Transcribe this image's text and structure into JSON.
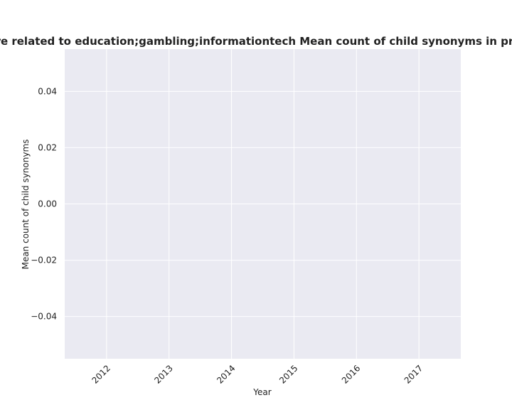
{
  "chart_data": {
    "type": "line",
    "title": "ies are related to education;gambling;informationtech Mean count of child synonyms in privacy",
    "xlabel": "Year",
    "ylabel": "Mean count of child synonyms",
    "x_ticks": [
      "2012",
      "2013",
      "2014",
      "2015",
      "2016",
      "2017"
    ],
    "y_ticks": [
      "0.04",
      "0.02",
      "0.00",
      "−0.02",
      "−0.04"
    ],
    "y_tick_values": [
      0.04,
      0.02,
      0.0,
      -0.02,
      -0.04
    ],
    "xlim": [
      2011.33,
      2017.67
    ],
    "ylim": [
      -0.055,
      0.055
    ],
    "series": [],
    "grid": true,
    "colors": {
      "plot_background": "#eaeaf2",
      "grid": "#ffffff",
      "text": "#222222"
    }
  }
}
